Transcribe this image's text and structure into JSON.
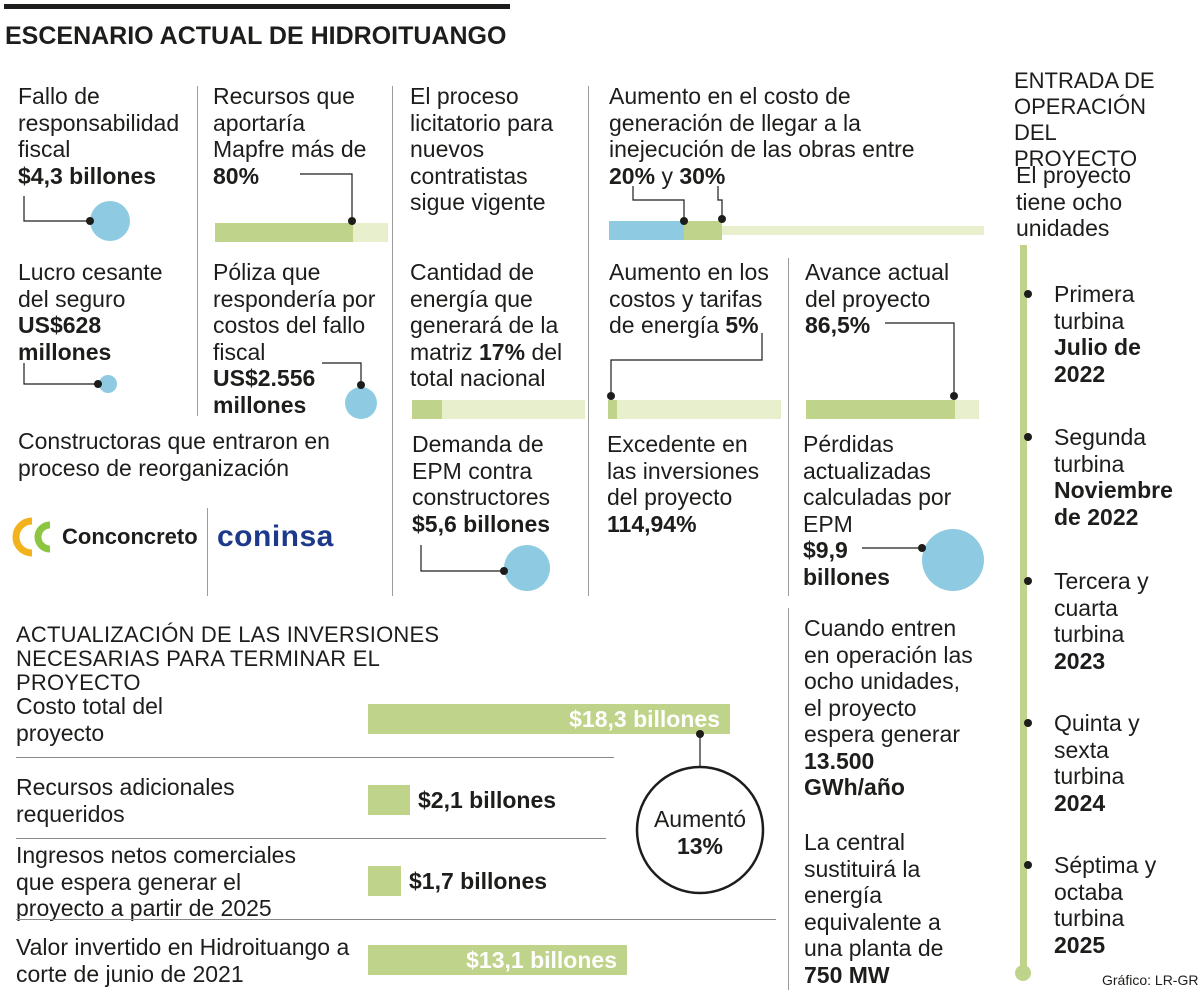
{
  "header": {
    "title": "ESCENARIO ACTUAL DE HIDROITUANGO"
  },
  "stats": {
    "fallo": {
      "label": "Fallo de responsabilidad fiscal",
      "value": "$4,3 billones"
    },
    "mapfre": {
      "label": "Recursos que aportaría Mapfre más de",
      "value": "80%"
    },
    "licitatorio": {
      "label": "El proceso licitatorio para nuevos contratistas sigue vigente"
    },
    "aumento_costo": {
      "label": "Aumento en el costo de generación de llegar a la inejecución de las obras entre",
      "v1": "20%",
      "and": "y",
      "v2": "30%"
    },
    "lucro": {
      "label": "Lucro cesante del seguro",
      "value": "US$628 millones"
    },
    "poliza": {
      "label": "Póliza que respondería por costos del fallo fiscal",
      "value": "US$2.556 millones"
    },
    "energia": {
      "label": "Cantidad de energía que generará de la matriz",
      "value": "17%",
      "suffix": "del total nacional"
    },
    "tarifas": {
      "label": "Aumento en los costos y tarifas de energía",
      "value": "5%"
    },
    "avance": {
      "label": "Avance actual del proyecto",
      "value": "86,5%"
    },
    "constructoras": {
      "label": "Constructoras que entraron en proceso de reorganización",
      "logo1": "Conconcreto",
      "logo2": "coninsa"
    },
    "demanda": {
      "label": "Demanda de EPM contra constructores",
      "value": "$5,6 billones"
    },
    "excedente": {
      "label": "Excedente en las inversiones del proyecto",
      "value": "114,94%"
    },
    "perdidas": {
      "label": "Pérdidas actualizadas calculadas por EPM",
      "value": "$9,9 billones"
    }
  },
  "investments": {
    "title": "ACTUALIZACIÓN DE LAS INVERSIONES NECESARIAS PARA TERMINAR EL PROYECTO",
    "rows": [
      {
        "label": "Costo total del proyecto",
        "value": "$18,3 billones",
        "amount": 18.3
      },
      {
        "label": "Recursos adicionales requeridos",
        "value": "$2,1 billones",
        "amount": 2.1
      },
      {
        "label": "Ingresos netos comerciales que espera generar el proyecto a partir de 2025",
        "value": "$1,7 billones",
        "amount": 1.7
      },
      {
        "label": "Valor invertido en Hidroituango a corte de junio de 2021",
        "value": "$13,1 billones",
        "amount": 13.1
      }
    ],
    "aumento": {
      "label": "Aumentó",
      "value": "13%"
    }
  },
  "generation": {
    "text": "Cuando entren en operación las ocho unidades, el proyecto espera generar",
    "value": "13.500 GWh/año",
    "central_text": "La central sustituirá la energía equivalente a una planta de",
    "central_value": "750 MW"
  },
  "timeline": {
    "title": "ENTRADA DE OPERACIÓN DEL PROYECTO",
    "intro": "El proyecto tiene ocho unidades",
    "items": [
      {
        "label": "Primera turbina",
        "date": "Julio de 2022"
      },
      {
        "label": "Segunda turbina",
        "date": "Noviembre de 2022"
      },
      {
        "label": "Tercera y cuarta turbina",
        "date": "2023"
      },
      {
        "label": "Quinta y sexta turbina",
        "date": "2024"
      },
      {
        "label": "Séptima y octaba turbina",
        "date": "2025"
      }
    ]
  },
  "credit": "Gráfico: LR-GR",
  "colors": {
    "green": "#bfd48a",
    "light_green": "#e7efcc",
    "blue": "#8ecbe3",
    "text": "#1d1d1b"
  }
}
